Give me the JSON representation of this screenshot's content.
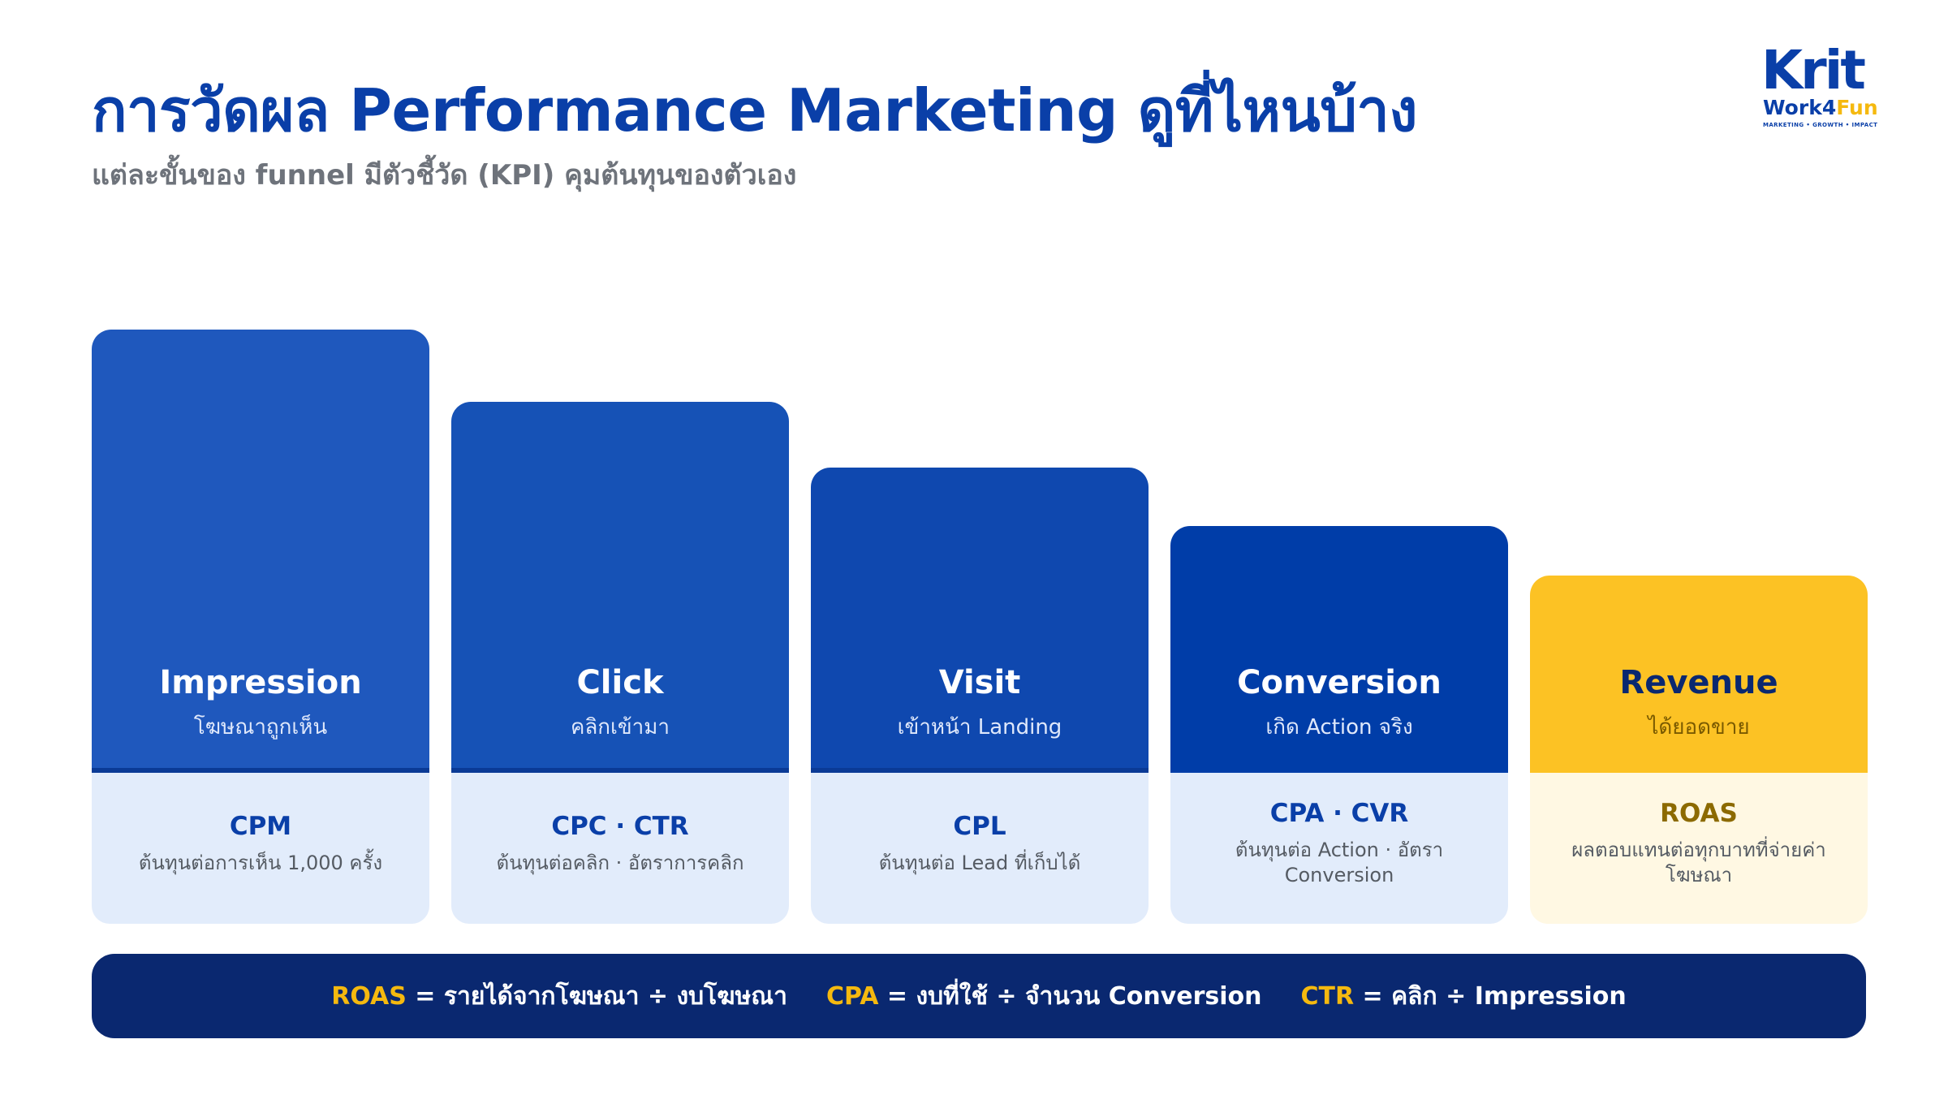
{
  "header": {
    "title": "การวัดผล Performance Marketing ดูที่ไหนบ้าง",
    "subtitle": "แต่ละขั้นของ funnel มีตัวชี้วัด (KPI) คุมต้นทุนของตัวเอง"
  },
  "logo": {
    "line1": "Krit",
    "line2_a": "Work4",
    "line2_b": "Fun",
    "tagline": "MARKETING • GROWTH • IMPACT"
  },
  "colors": {
    "primary_blue": "#0a3fa8",
    "navy": "#0a2870",
    "accent_yellow": "#f5b90f"
  },
  "stages": [
    {
      "name": "Impression",
      "desc": "โฆษณาถูกเห็น",
      "kpi": "CPM",
      "kpi_desc": "ต้นทุนต่อการเห็น 1,000 ครั้ง",
      "color": "#1f58bd"
    },
    {
      "name": "Click",
      "desc": "คลิกเข้ามา",
      "kpi": "CPC · CTR",
      "kpi_desc": "ต้นทุนต่อคลิก · อัตราการคลิก",
      "color": "#1652b6"
    },
    {
      "name": "Visit",
      "desc": "เข้าหน้า Landing",
      "kpi": "CPL",
      "kpi_desc": "ต้นทุนต่อ Lead ที่เก็บได้",
      "color": "#0f48af"
    },
    {
      "name": "Conversion",
      "desc": "เกิด Action จริง",
      "kpi": "CPA · CVR",
      "kpi_desc": "ต้นทุนต่อ Action · อัตรา Conversion",
      "color": "#003da8"
    },
    {
      "name": "Revenue",
      "desc": "ได้ยอดขาย",
      "kpi": "ROAS",
      "kpi_desc": "ผลตอบแทนต่อทุกบาทที่จ่ายค่าโฆษณา",
      "color": "#fcc224"
    }
  ],
  "formulas": [
    {
      "term": "ROAS",
      "rest": " = รายได้จากโฆษณา ÷ งบโฆษณา"
    },
    {
      "term": "CPA",
      "rest": " = งบที่ใช้ ÷ จำนวน Conversion"
    },
    {
      "term": "CTR",
      "rest": " = คลิก ÷ Impression"
    }
  ]
}
